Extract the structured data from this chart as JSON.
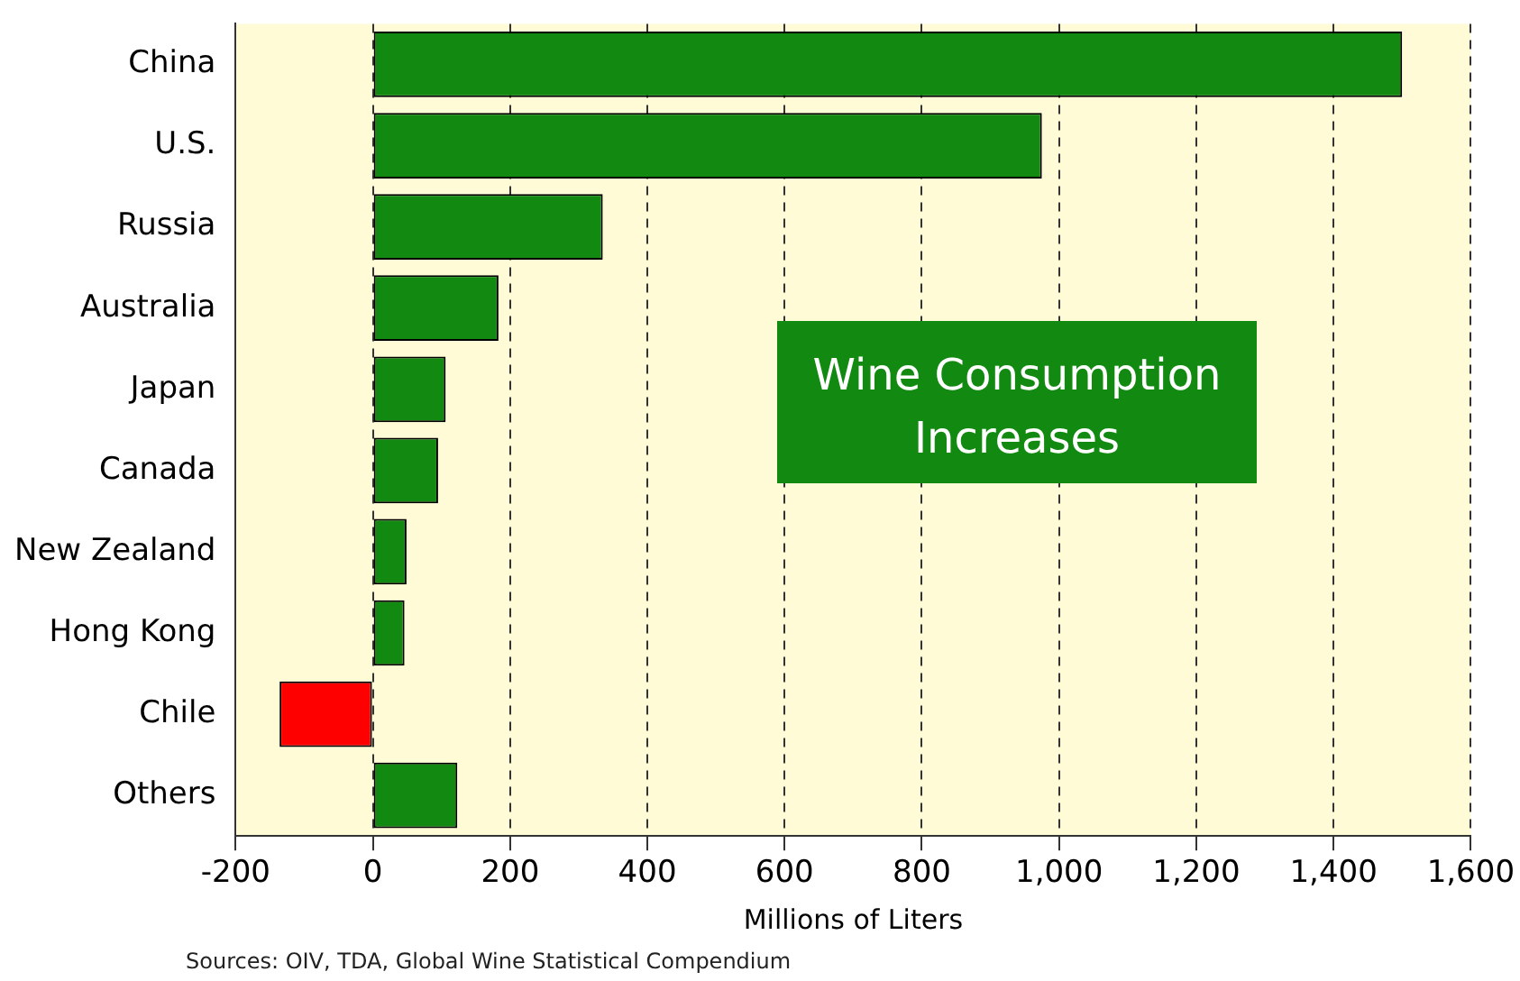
{
  "chart_data": {
    "type": "bar",
    "orientation": "horizontal",
    "categories": [
      "China",
      "U.S.",
      "Russia",
      "Australia",
      "Japan",
      "Canada",
      "New Zealand",
      "Hong Kong",
      "Chile",
      "Others"
    ],
    "values": [
      1500,
      975,
      335,
      183,
      106,
      95,
      49,
      46,
      -136,
      123
    ],
    "colors": [
      "#128a12",
      "#128a12",
      "#128a12",
      "#128a12",
      "#128a12",
      "#128a12",
      "#128a12",
      "#128a12",
      "#ff0000",
      "#128a12"
    ],
    "xlim": [
      -200,
      1600
    ],
    "xticks": [
      -200,
      0,
      200,
      400,
      600,
      800,
      {
        "value": 1000,
        "label": "1,000"
      },
      {
        "value": 1200,
        "label": "1,200"
      },
      {
        "value": 1400,
        "label": "1,400"
      },
      {
        "value": 1600,
        "label": "1,600"
      }
    ],
    "xlabel": "Millions of Liters",
    "grid": "x",
    "legend": false,
    "annotations": [
      "Wine Consumption Increases",
      "Sources: OIV, TDA, Global Wine Statistical Compendium"
    ]
  }
}
